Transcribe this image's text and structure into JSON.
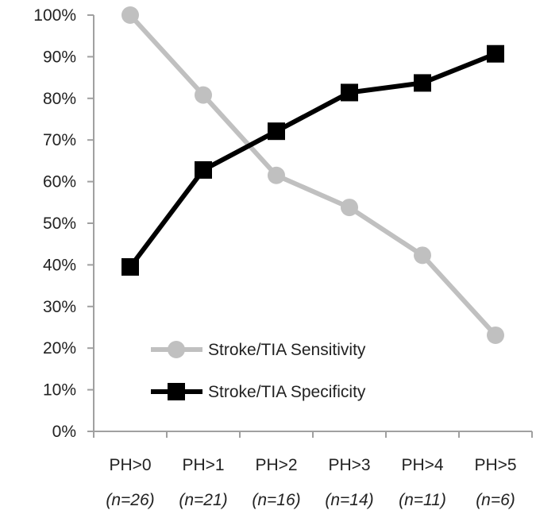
{
  "chart_data": {
    "type": "line",
    "categories": [
      "PH>0",
      "PH>1",
      "PH>2",
      "PH>3",
      "PH>4",
      "PH>5"
    ],
    "category_counts": [
      "(n=26)",
      "(n=21)",
      "(n=16)",
      "(n=14)",
      "(n=11)",
      "(n=6)"
    ],
    "ylim": [
      0,
      100
    ],
    "ytick_values": [
      0,
      10,
      20,
      30,
      40,
      50,
      60,
      70,
      80,
      90,
      100
    ],
    "ytick_labels": [
      "0%",
      "10%",
      "20%",
      "30%",
      "40%",
      "50%",
      "60%",
      "70%",
      "80%",
      "90%",
      "100%"
    ],
    "grid": false,
    "legend_position": "bottom-center",
    "series": [
      {
        "name": "Stroke/TIA Sensitivity",
        "values": [
          100,
          80.8,
          61.5,
          53.8,
          42.3,
          23.1
        ],
        "color": "#c0c0c0",
        "marker": "circle"
      },
      {
        "name": "Stroke/TIA Specificity",
        "values": [
          39.5,
          62.8,
          72.1,
          81.4,
          83.7,
          90.7
        ],
        "color": "#000000",
        "marker": "square"
      }
    ]
  }
}
